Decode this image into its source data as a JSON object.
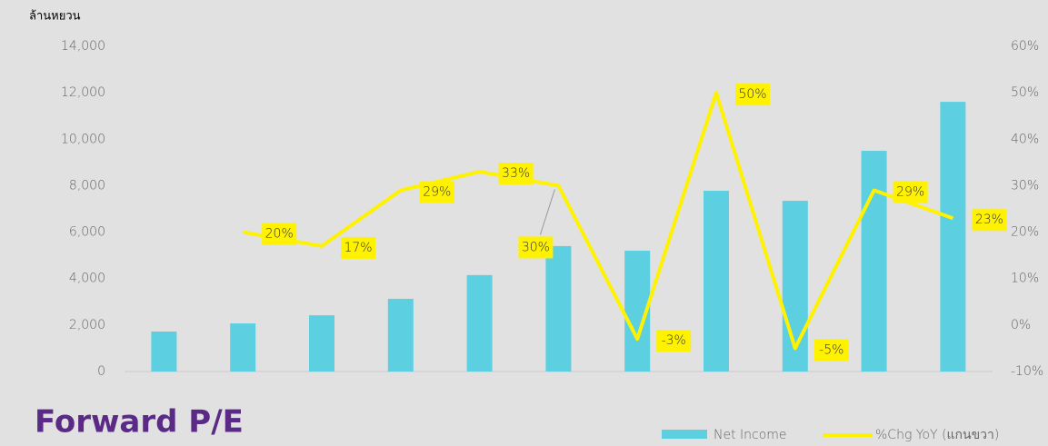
{
  "chart_data": {
    "type": "bar-line",
    "title": "Forward P/E",
    "y_axis_label": "ล้านหยวน",
    "categories": [
      null,
      null,
      null,
      null,
      null,
      null,
      null,
      null,
      null,
      null,
      null
    ],
    "series": [
      {
        "name": "Net Income",
        "type": "bar",
        "color": "#5ccfe0",
        "values": [
          1720,
          2070,
          2420,
          3130,
          4150,
          5400,
          5200,
          7780,
          7350,
          9500,
          11610
        ]
      },
      {
        "name": "%Chg YoY (แกนขวา)",
        "type": "line",
        "axis": "y2",
        "color": "#fff200",
        "values": [
          null,
          20,
          17,
          29,
          33,
          30,
          -3,
          50,
          -5,
          29,
          23
        ],
        "value_labels": [
          null,
          "20%",
          "17%",
          "29%",
          "33%",
          "30%",
          "-3%",
          "50%",
          "-5%",
          "29%",
          "23%"
        ]
      }
    ],
    "ylim": [
      0,
      14000
    ],
    "yticks": [
      0,
      {
        "value": 2000,
        "label": "2,000"
      },
      {
        "value": 4000,
        "label": "4,000"
      },
      {
        "value": 6000,
        "label": "6,000"
      },
      {
        "value": 8000,
        "label": "8,000"
      },
      {
        "value": 10000,
        "label": "10,000"
      },
      {
        "value": 12000,
        "label": "12,000"
      },
      {
        "value": 14000,
        "label": "14,000"
      }
    ],
    "y2lim": [
      -10,
      60
    ],
    "y2ticks": [
      {
        "value": -10,
        "label": "-10%"
      },
      {
        "value": 0,
        "label": "0%"
      },
      {
        "value": 10,
        "label": "10%"
      },
      {
        "value": 20,
        "label": "20%"
      },
      {
        "value": 30,
        "label": "30%"
      },
      {
        "value": 40,
        "label": "40%"
      },
      {
        "value": 50,
        "label": "50%"
      },
      {
        "value": 60,
        "label": "60%"
      }
    ],
    "legend": "bottom-right"
  }
}
